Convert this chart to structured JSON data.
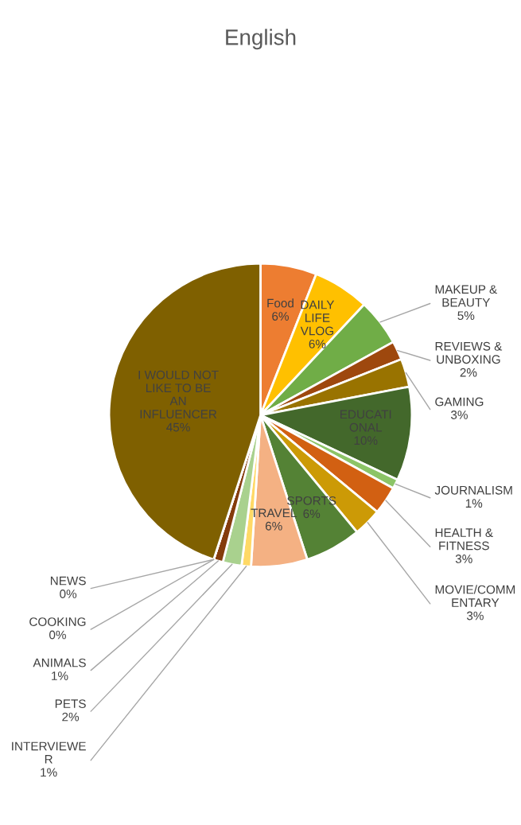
{
  "chart_data": {
    "type": "pie",
    "title": "English",
    "categories": [
      "Food",
      "DAILY LIFE VLOG",
      "MAKEUP & BEAUTY",
      "REVIEWS & UNBOXING",
      "GAMING",
      "EDUCATIONAL",
      "JOURNALISM",
      "HEALTH & FITNESS",
      "MOVIE/COMMENTARY",
      "SPORTS",
      "TRAVEL",
      "INTERVIEWER",
      "PETS",
      "ANIMALS",
      "NEWS",
      "COOKING",
      "I WOULD NOT LIKE TO BE AN INFLUENCER"
    ],
    "values": [
      6,
      6,
      5,
      2,
      3,
      10,
      1,
      3,
      3,
      6,
      6,
      1,
      2,
      1,
      0,
      0,
      45
    ],
    "value_labels": [
      "6%",
      "6%",
      "5%",
      "2%",
      "3%",
      "10%",
      "1%",
      "3%",
      "3%",
      "6%",
      "6%",
      "1%",
      "2%",
      "1%",
      "0%",
      "0%",
      "45%"
    ],
    "colors": [
      "#ed7d31",
      "#ffc000",
      "#70ad47",
      "#9e480e",
      "#997300",
      "#43682b",
      "#8cc467",
      "#d26012",
      "#cc9a06",
      "#548235",
      "#f4b183",
      "#ffd966",
      "#a9d18e",
      "#843c0c",
      "#7f6000",
      "#c55a11",
      "#7f6000"
    ],
    "legend": false
  }
}
